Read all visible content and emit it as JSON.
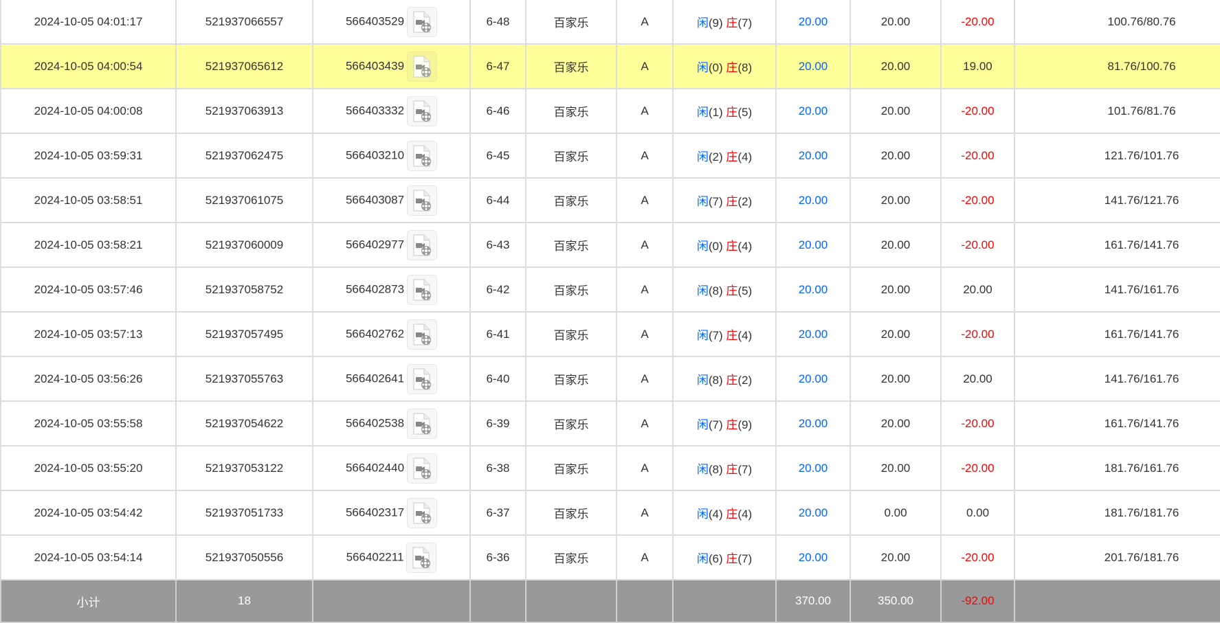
{
  "colors": {
    "highlight": "#ffff99",
    "blue": "#0066ff",
    "red": "#ff0000",
    "footer": "#999999"
  },
  "icons": {
    "replay": "video-file-icon"
  },
  "labels": {
    "xian": "闲",
    "zhuang": "庄"
  },
  "rows": [
    {
      "time": "2024-10-05 04:01:17",
      "order": "521937066557",
      "round": "566403529",
      "table": "6-48",
      "game": "百家乐",
      "type": "A",
      "xian": "(9)",
      "zhuang": "(7)",
      "bet": "20.00",
      "valid": "20.00",
      "win": "-20.00",
      "win_neg": true,
      "balance": "100.76/80.76"
    },
    {
      "time": "2024-10-05 04:00:54",
      "order": "521937065612",
      "round": "566403439",
      "table": "6-47",
      "game": "百家乐",
      "type": "A",
      "xian": "(0)",
      "zhuang": "(8)",
      "bet": "20.00",
      "valid": "20.00",
      "win": "19.00",
      "win_neg": false,
      "balance": "81.76/100.76",
      "highlight": true
    },
    {
      "time": "2024-10-05 04:00:08",
      "order": "521937063913",
      "round": "566403332",
      "table": "6-46",
      "game": "百家乐",
      "type": "A",
      "xian": "(1)",
      "zhuang": "(5)",
      "bet": "20.00",
      "valid": "20.00",
      "win": "-20.00",
      "win_neg": true,
      "balance": "101.76/81.76"
    },
    {
      "time": "2024-10-05 03:59:31",
      "order": "521937062475",
      "round": "566403210",
      "table": "6-45",
      "game": "百家乐",
      "type": "A",
      "xian": "(2)",
      "zhuang": "(4)",
      "bet": "20.00",
      "valid": "20.00",
      "win": "-20.00",
      "win_neg": true,
      "balance": "121.76/101.76"
    },
    {
      "time": "2024-10-05 03:58:51",
      "order": "521937061075",
      "round": "566403087",
      "table": "6-44",
      "game": "百家乐",
      "type": "A",
      "xian": "(7)",
      "zhuang": "(2)",
      "bet": "20.00",
      "valid": "20.00",
      "win": "-20.00",
      "win_neg": true,
      "balance": "141.76/121.76"
    },
    {
      "time": "2024-10-05 03:58:21",
      "order": "521937060009",
      "round": "566402977",
      "table": "6-43",
      "game": "百家乐",
      "type": "A",
      "xian": "(0)",
      "zhuang": "(4)",
      "bet": "20.00",
      "valid": "20.00",
      "win": "-20.00",
      "win_neg": true,
      "balance": "161.76/141.76"
    },
    {
      "time": "2024-10-05 03:57:46",
      "order": "521937058752",
      "round": "566402873",
      "table": "6-42",
      "game": "百家乐",
      "type": "A",
      "xian": "(8)",
      "zhuang": "(5)",
      "bet": "20.00",
      "valid": "20.00",
      "win": "20.00",
      "win_neg": false,
      "balance": "141.76/161.76"
    },
    {
      "time": "2024-10-05 03:57:13",
      "order": "521937057495",
      "round": "566402762",
      "table": "6-41",
      "game": "百家乐",
      "type": "A",
      "xian": "(7)",
      "zhuang": "(4)",
      "bet": "20.00",
      "valid": "20.00",
      "win": "-20.00",
      "win_neg": true,
      "balance": "161.76/141.76"
    },
    {
      "time": "2024-10-05 03:56:26",
      "order": "521937055763",
      "round": "566402641",
      "table": "6-40",
      "game": "百家乐",
      "type": "A",
      "xian": "(8)",
      "zhuang": "(2)",
      "bet": "20.00",
      "valid": "20.00",
      "win": "20.00",
      "win_neg": false,
      "balance": "141.76/161.76"
    },
    {
      "time": "2024-10-05 03:55:58",
      "order": "521937054622",
      "round": "566402538",
      "table": "6-39",
      "game": "百家乐",
      "type": "A",
      "xian": "(7)",
      "zhuang": "(9)",
      "bet": "20.00",
      "valid": "20.00",
      "win": "-20.00",
      "win_neg": true,
      "balance": "161.76/141.76"
    },
    {
      "time": "2024-10-05 03:55:20",
      "order": "521937053122",
      "round": "566402440",
      "table": "6-38",
      "game": "百家乐",
      "type": "A",
      "xian": "(8)",
      "zhuang": "(7)",
      "bet": "20.00",
      "valid": "20.00",
      "win": "-20.00",
      "win_neg": true,
      "balance": "181.76/161.76"
    },
    {
      "time": "2024-10-05 03:54:42",
      "order": "521937051733",
      "round": "566402317",
      "table": "6-37",
      "game": "百家乐",
      "type": "A",
      "xian": "(4)",
      "zhuang": "(4)",
      "bet": "20.00",
      "valid": "0.00",
      "win": "0.00",
      "win_neg": false,
      "balance": "181.76/181.76"
    },
    {
      "time": "2024-10-05 03:54:14",
      "order": "521937050556",
      "round": "566402211",
      "table": "6-36",
      "game": "百家乐",
      "type": "A",
      "xian": "(6)",
      "zhuang": "(7)",
      "bet": "20.00",
      "valid": "20.00",
      "win": "-20.00",
      "win_neg": true,
      "balance": "201.76/181.76"
    }
  ],
  "footer": {
    "label": "小计",
    "count": "18",
    "bet": "370.00",
    "valid": "350.00",
    "win": "-92.00"
  }
}
